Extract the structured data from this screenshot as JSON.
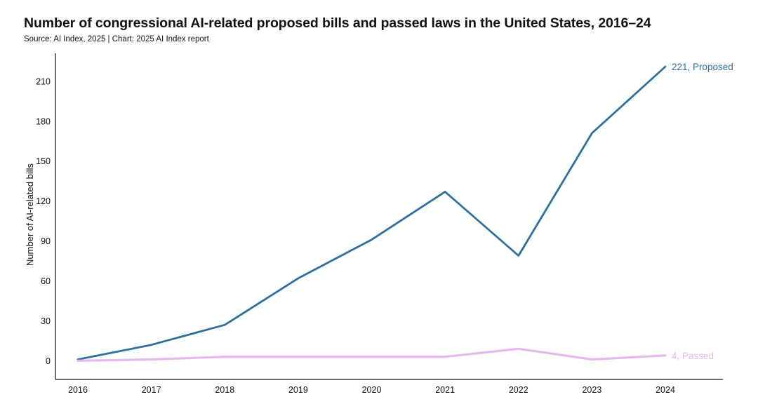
{
  "header": {
    "title": "Number of congressional AI-related proposed bills and passed laws in the United States, 2016–24",
    "subtitle": "Source: AI Index, 2025 | Chart: 2025 AI Index report"
  },
  "chart_data": {
    "type": "line",
    "title": "Number of congressional AI-related proposed bills and passed laws in the United States, 2016–24",
    "xlabel": "",
    "ylabel": "Number of AI-related bills",
    "x": [
      2016,
      2017,
      2018,
      2019,
      2020,
      2021,
      2022,
      2023,
      2024
    ],
    "ylim": [
      -14,
      221
    ],
    "yticks": [
      0,
      30,
      60,
      90,
      120,
      150,
      180,
      210
    ],
    "grid": false,
    "legend": "end-labels",
    "series": [
      {
        "name": "Proposed",
        "end_label": "221, Proposed",
        "color": "#2e6f9e",
        "values": [
          1,
          12,
          27,
          62,
          91,
          127,
          79,
          171,
          221
        ]
      },
      {
        "name": "Passed",
        "end_label": "4, Passed",
        "color": "#e7b7ef",
        "values": [
          0,
          1,
          3,
          3,
          3,
          3,
          9,
          1,
          4
        ]
      }
    ]
  }
}
